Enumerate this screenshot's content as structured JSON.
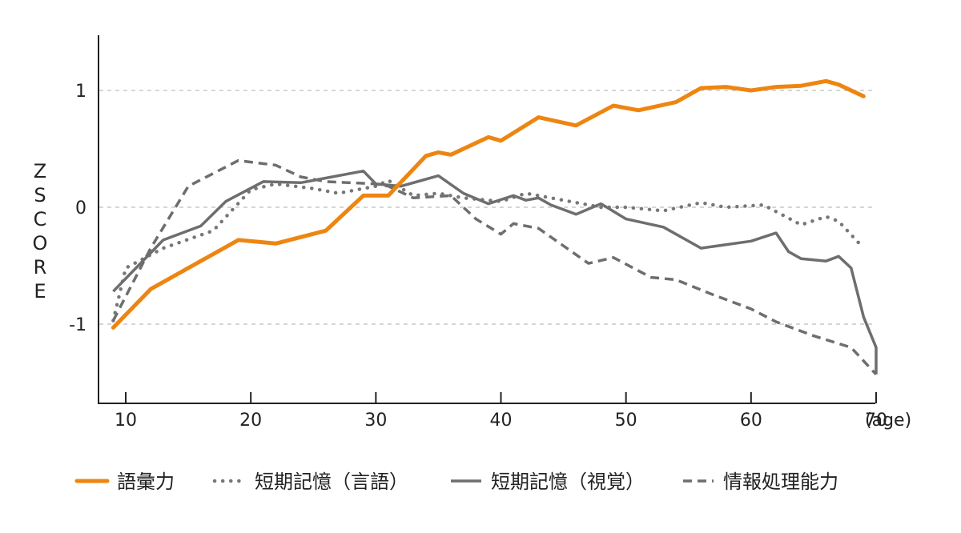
{
  "chart_data": {
    "type": "line",
    "title": "",
    "xlabel": "(age)",
    "ylabel": "ZSCORE",
    "xlim": [
      8,
      71
    ],
    "ylim": [
      -1.6,
      1.45
    ],
    "xticks": [
      10,
      20,
      30,
      40,
      50,
      60,
      70
    ],
    "yticks": [
      1,
      0,
      -1
    ],
    "ytick_labels": [
      "1",
      "0",
      "-1"
    ],
    "grid": "horizontal dashed at 1, 0, -1",
    "legend_position": "bottom",
    "series": [
      {
        "name": "語彙力",
        "style": "solid-thick",
        "color": "#EE8511",
        "points": [
          [
            9,
            -1.03
          ],
          [
            12,
            -0.7
          ],
          [
            19,
            -0.28
          ],
          [
            22,
            -0.31
          ],
          [
            26,
            -0.2
          ],
          [
            29,
            0.1
          ],
          [
            31,
            0.1
          ],
          [
            34,
            0.44
          ],
          [
            35,
            0.47
          ],
          [
            36,
            0.45
          ],
          [
            39,
            0.6
          ],
          [
            40,
            0.57
          ],
          [
            43,
            0.77
          ],
          [
            46,
            0.7
          ],
          [
            49,
            0.87
          ],
          [
            51,
            0.83
          ],
          [
            54,
            0.9
          ],
          [
            56,
            1.02
          ],
          [
            58,
            1.03
          ],
          [
            60,
            1.0
          ],
          [
            62,
            1.03
          ],
          [
            64,
            1.04
          ],
          [
            66,
            1.08
          ],
          [
            67,
            1.05
          ],
          [
            69,
            0.95
          ]
        ]
      },
      {
        "name": "短期記憶（言語）",
        "style": "dotted",
        "color": "#777777",
        "points": [
          [
            9,
            -0.97
          ],
          [
            10,
            -0.52
          ],
          [
            13,
            -0.35
          ],
          [
            17,
            -0.2
          ],
          [
            20,
            0.15
          ],
          [
            22,
            0.2
          ],
          [
            25,
            0.16
          ],
          [
            27,
            0.12
          ],
          [
            30,
            0.18
          ],
          [
            31,
            0.23
          ],
          [
            33,
            0.1
          ],
          [
            35,
            0.12
          ],
          [
            37,
            0.08
          ],
          [
            40,
            0.05
          ],
          [
            42,
            0.12
          ],
          [
            45,
            0.06
          ],
          [
            48,
            0.0
          ],
          [
            50,
            0.0
          ],
          [
            53,
            -0.03
          ],
          [
            56,
            0.04
          ],
          [
            58,
            0.0
          ],
          [
            61,
            0.02
          ],
          [
            64,
            -0.15
          ],
          [
            66,
            -0.08
          ],
          [
            67,
            -0.12
          ],
          [
            69,
            -0.35
          ]
        ]
      },
      {
        "name": "短期記憶（視覚）",
        "style": "solid",
        "color": "#6e6e6e",
        "points": [
          [
            9,
            -0.72
          ],
          [
            13,
            -0.28
          ],
          [
            16,
            -0.16
          ],
          [
            18,
            0.05
          ],
          [
            21,
            0.22
          ],
          [
            24,
            0.21
          ],
          [
            29,
            0.31
          ],
          [
            30,
            0.2
          ],
          [
            32,
            0.18
          ],
          [
            35,
            0.27
          ],
          [
            37,
            0.12
          ],
          [
            39,
            0.03
          ],
          [
            41,
            0.1
          ],
          [
            42,
            0.06
          ],
          [
            43,
            0.08
          ],
          [
            44,
            0.02
          ],
          [
            45,
            -0.02
          ],
          [
            46,
            -0.06
          ],
          [
            48,
            0.03
          ],
          [
            50,
            -0.1
          ],
          [
            53,
            -0.17
          ],
          [
            56,
            -0.35
          ],
          [
            60,
            -0.29
          ],
          [
            62,
            -0.22
          ],
          [
            63,
            -0.38
          ],
          [
            64,
            -0.44
          ],
          [
            66,
            -0.46
          ],
          [
            67,
            -0.42
          ],
          [
            68,
            -0.52
          ],
          [
            69,
            -0.94
          ],
          [
            70,
            -1.2
          ],
          [
            70,
            -1.43
          ]
        ]
      },
      {
        "name": "情報処理能力",
        "style": "dashed",
        "color": "#6e6e6e",
        "points": [
          [
            9,
            -0.97
          ],
          [
            12,
            -0.35
          ],
          [
            15,
            0.18
          ],
          [
            19,
            0.4
          ],
          [
            22,
            0.36
          ],
          [
            24,
            0.26
          ],
          [
            26,
            0.22
          ],
          [
            30,
            0.2
          ],
          [
            31,
            0.18
          ],
          [
            33,
            0.08
          ],
          [
            36,
            0.1
          ],
          [
            38,
            -0.1
          ],
          [
            40,
            -0.23
          ],
          [
            41,
            -0.14
          ],
          [
            43,
            -0.18
          ],
          [
            47,
            -0.48
          ],
          [
            49,
            -0.43
          ],
          [
            52,
            -0.6
          ],
          [
            54,
            -0.62
          ],
          [
            57,
            -0.75
          ],
          [
            60,
            -0.87
          ],
          [
            62,
            -0.98
          ],
          [
            65,
            -1.1
          ],
          [
            68,
            -1.2
          ],
          [
            70,
            -1.43
          ]
        ]
      }
    ]
  }
}
